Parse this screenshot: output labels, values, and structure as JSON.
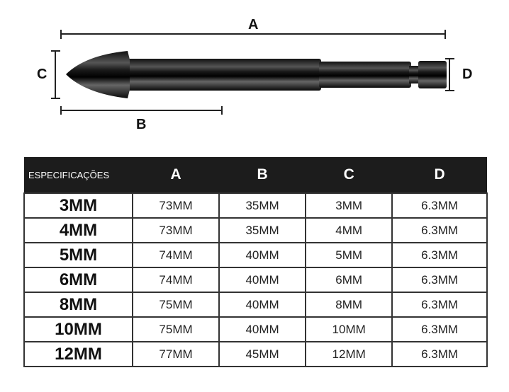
{
  "diagram": {
    "labels": {
      "a": "A",
      "b": "B",
      "c": "C",
      "d": "D"
    }
  },
  "table": {
    "headers": [
      "ESPECIFICAÇÕES",
      "A",
      "B",
      "C",
      "D"
    ],
    "rows": [
      [
        "3MM",
        "73MM",
        "35MM",
        "3MM",
        "6.3MM"
      ],
      [
        "4MM",
        "73MM",
        "35MM",
        "4MM",
        "6.3MM"
      ],
      [
        "5MM",
        "74MM",
        "40MM",
        "5MM",
        "6.3MM"
      ],
      [
        "6MM",
        "74MM",
        "40MM",
        "6MM",
        "6.3MM"
      ],
      [
        "8MM",
        "75MM",
        "40MM",
        "8MM",
        "6.3MM"
      ],
      [
        "10MM",
        "75MM",
        "40MM",
        "10MM",
        "6.3MM"
      ],
      [
        "12MM",
        "77MM",
        "45MM",
        "12MM",
        "6.3MM"
      ]
    ]
  }
}
